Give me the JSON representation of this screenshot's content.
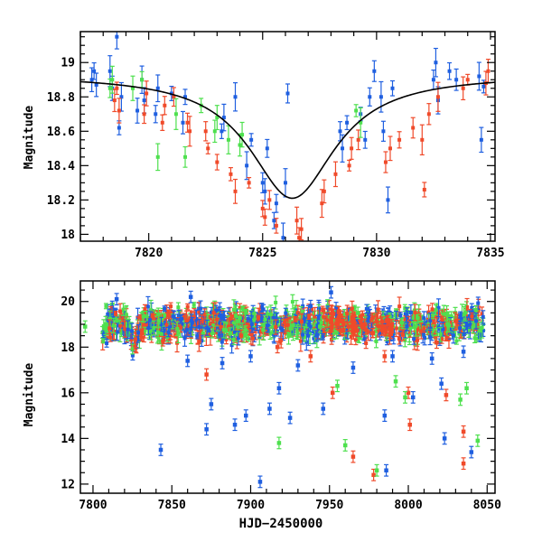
{
  "colors": {
    "blue": "#1f5fe0",
    "red": "#f04a2a",
    "green": "#4ee04e",
    "model": "#000000"
  },
  "chart_data": [
    {
      "type": "scatter",
      "panel": "top",
      "title": "",
      "xlabel": "",
      "ylabel": "Magnitude",
      "xlim": [
        7817,
        7835.2
      ],
      "ylim": [
        19.18,
        17.96
      ],
      "y_inverted": true,
      "xticks": [
        7820,
        7825,
        7830,
        7835
      ],
      "yticks": [
        18,
        18.2,
        18.4,
        18.6,
        18.8,
        19
      ],
      "ytick_labels": [
        "18",
        "18.2",
        "18.4",
        "18.6",
        "18.8",
        "19"
      ],
      "model_curve": {
        "type": "gaussian-like",
        "peak_x": 7826.3,
        "peak_mag": 18.21,
        "baseline_mag": 18.93,
        "width_days": 2.3
      },
      "series": [
        {
          "color": "blue",
          "points": [
            [
              7817.5,
              18.9
            ],
            [
              7817.6,
              18.95
            ],
            [
              7817.7,
              18.87
            ],
            [
              7818.3,
              18.95
            ],
            [
              7818.4,
              18.85
            ],
            [
              7818.6,
              19.15
            ],
            [
              7818.7,
              18.62
            ],
            [
              7818.8,
              18.8
            ],
            [
              7819.5,
              18.72
            ],
            [
              7819.7,
              18.9
            ],
            [
              7819.8,
              18.78
            ],
            [
              7820.3,
              18.7
            ],
            [
              7820.4,
              18.85
            ],
            [
              7821.0,
              18.82
            ],
            [
              7821.5,
              18.65
            ],
            [
              7821.6,
              18.8
            ],
            [
              7823.2,
              18.6
            ],
            [
              7823.3,
              18.68
            ],
            [
              7823.8,
              18.8
            ],
            [
              7824.3,
              18.4
            ],
            [
              7824.5,
              18.55
            ],
            [
              7825.0,
              18.3
            ],
            [
              7825.1,
              18.25
            ],
            [
              7825.2,
              18.5
            ],
            [
              7825.5,
              18.08
            ],
            [
              7825.6,
              18.18
            ],
            [
              7825.9,
              17.98
            ],
            [
              7826.0,
              18.3
            ],
            [
              7826.1,
              18.82
            ],
            [
              7828.4,
              18.6
            ],
            [
              7828.5,
              18.5
            ],
            [
              7828.7,
              18.65
            ],
            [
              7829.3,
              18.7
            ],
            [
              7829.5,
              18.55
            ],
            [
              7829.7,
              18.8
            ],
            [
              7829.9,
              18.95
            ],
            [
              7830.2,
              18.8
            ],
            [
              7830.3,
              18.6
            ],
            [
              7830.5,
              18.2
            ],
            [
              7830.7,
              18.85
            ],
            [
              7832.5,
              18.9
            ],
            [
              7832.6,
              19.0
            ],
            [
              7832.7,
              18.78
            ],
            [
              7833.2,
              18.95
            ],
            [
              7833.5,
              18.9
            ],
            [
              7834.5,
              18.92
            ],
            [
              7834.6,
              18.55
            ],
            [
              7834.7,
              18.86
            ]
          ]
        },
        {
          "color": "red",
          "points": [
            [
              7818.5,
              18.78
            ],
            [
              7818.6,
              18.85
            ],
            [
              7818.7,
              18.72
            ],
            [
              7819.8,
              18.7
            ],
            [
              7819.9,
              18.82
            ],
            [
              7820.6,
              18.65
            ],
            [
              7820.7,
              18.75
            ],
            [
              7821.1,
              18.8
            ],
            [
              7821.7,
              18.65
            ],
            [
              7821.8,
              18.6
            ],
            [
              7822.5,
              18.6
            ],
            [
              7822.6,
              18.5
            ],
            [
              7823.0,
              18.42
            ],
            [
              7823.6,
              18.35
            ],
            [
              7823.8,
              18.25
            ],
            [
              7824.4,
              18.3
            ],
            [
              7825.0,
              18.15
            ],
            [
              7825.1,
              18.1
            ],
            [
              7825.3,
              18.2
            ],
            [
              7825.6,
              18.05
            ],
            [
              7826.5,
              18.08
            ],
            [
              7826.6,
              17.98
            ],
            [
              7826.7,
              18.03
            ],
            [
              7827.6,
              18.18
            ],
            [
              7827.7,
              18.25
            ],
            [
              7828.2,
              18.35
            ],
            [
              7828.8,
              18.4
            ],
            [
              7828.9,
              18.5
            ],
            [
              7829.2,
              18.55
            ],
            [
              7830.4,
              18.42
            ],
            [
              7830.6,
              18.5
            ],
            [
              7831.0,
              18.55
            ],
            [
              7831.6,
              18.62
            ],
            [
              7832.0,
              18.55
            ],
            [
              7832.1,
              18.26
            ],
            [
              7832.3,
              18.7
            ],
            [
              7832.7,
              18.8
            ],
            [
              7833.8,
              18.85
            ],
            [
              7834.0,
              18.9
            ],
            [
              7834.8,
              18.88
            ],
            [
              7834.9,
              18.95
            ]
          ]
        },
        {
          "color": "green",
          "points": [
            [
              7818.3,
              18.85
            ],
            [
              7818.4,
              18.9
            ],
            [
              7819.3,
              18.85
            ],
            [
              7819.7,
              18.9
            ],
            [
              7820.4,
              18.45
            ],
            [
              7821.2,
              18.7
            ],
            [
              7821.6,
              18.45
            ],
            [
              7822.3,
              18.75
            ],
            [
              7822.9,
              18.6
            ],
            [
              7823.0,
              18.68
            ],
            [
              7823.5,
              18.55
            ],
            [
              7824.0,
              18.52
            ],
            [
              7824.1,
              18.58
            ],
            [
              7829.1,
              18.72
            ],
            [
              7829.3,
              18.65
            ]
          ]
        }
      ]
    },
    {
      "type": "scatter",
      "panel": "bottom",
      "title": "",
      "xlabel": "HJD−2450000",
      "ylabel": "Magnitude",
      "xlim": [
        7792,
        8055
      ],
      "ylim": [
        20.9,
        11.6
      ],
      "y_inverted": true,
      "xticks": [
        7800,
        7850,
        7900,
        7950,
        8000,
        8050
      ],
      "yticks": [
        12,
        14,
        16,
        18,
        20
      ],
      "baseline_mag": 19.0,
      "bump": {
        "center_x": 7826,
        "peak_mag": 18.3,
        "width_days": 3
      },
      "dense_range": [
        7806,
        8048
      ],
      "series": [
        {
          "color": "blue",
          "points": [
            [
              7843,
              13.5
            ],
            [
              7906,
              12.1
            ],
            [
              7986,
              12.6
            ],
            [
              8040,
              13.4
            ],
            [
              7872,
              14.4
            ],
            [
              7890,
              14.6
            ],
            [
              8023,
              14.0
            ],
            [
              7875,
              15.5
            ],
            [
              7897,
              15.0
            ],
            [
              7912,
              15.3
            ],
            [
              7925,
              14.9
            ],
            [
              7946,
              15.3
            ],
            [
              7985,
              15.0
            ],
            [
              8003,
              15.8
            ],
            [
              7918,
              16.2
            ],
            [
              8021,
              16.4
            ],
            [
              7860,
              17.4
            ],
            [
              7882,
              17.3
            ],
            [
              7900,
              17.6
            ],
            [
              7930,
              17.2
            ],
            [
              7965,
              17.1
            ],
            [
              7990,
              17.6
            ],
            [
              8015,
              17.5
            ],
            [
              8035,
              17.8
            ],
            [
              7938,
              19.8
            ],
            [
              7951,
              20.4
            ],
            [
              7862,
              20.2
            ],
            [
              7815,
              20.1
            ]
          ]
        },
        {
          "color": "red",
          "points": [
            [
              7978,
              12.4
            ],
            [
              8001,
              14.6
            ],
            [
              8035,
              12.9
            ],
            [
              8035,
              14.3
            ],
            [
              7872,
              16.8
            ],
            [
              7938,
              17.6
            ],
            [
              7952,
              16.0
            ],
            [
              7965,
              13.2
            ],
            [
              8000,
              16.0
            ],
            [
              8024,
              15.9
            ],
            [
              7917,
              18.0
            ],
            [
              7894,
              18.5
            ],
            [
              8018,
              18.2
            ],
            [
              7985,
              17.6
            ]
          ]
        },
        {
          "color": "green",
          "points": [
            [
              7808,
              18.8
            ],
            [
              7795,
              18.9
            ],
            [
              7918,
              13.8
            ],
            [
              7960,
              13.7
            ],
            [
              7980,
              12.6
            ],
            [
              8044,
              13.9
            ],
            [
              7955,
              16.3
            ],
            [
              8033,
              15.7
            ],
            [
              8037,
              16.2
            ],
            [
              7992,
              16.5
            ],
            [
              7998,
              15.8
            ],
            [
              7887,
              18.6
            ],
            [
              7944,
              18.9
            ],
            [
              7968,
              19.5
            ]
          ]
        }
      ]
    }
  ]
}
